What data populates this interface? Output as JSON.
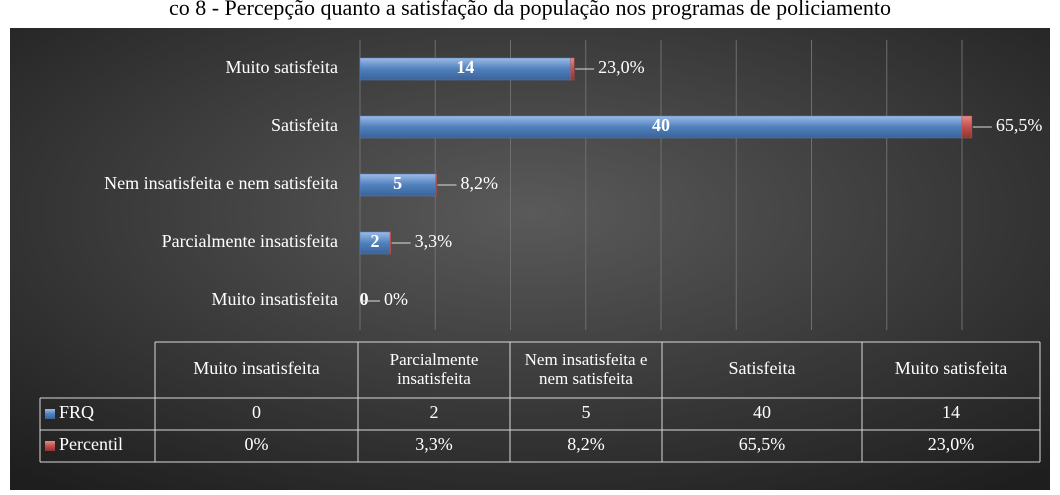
{
  "chart_data": {
    "type": "bar",
    "orientation": "horizontal",
    "title": "co 8 - Percepção quanto a satisfação da população nos programas de policiamento",
    "categories": [
      "Muito insatisfeita",
      "Parcialmente insatisfeita",
      "Nem insatisfeita e nem satisfeita",
      "Satisfeita",
      "Muito satisfeita"
    ],
    "table_headers": [
      "Muito insatisfeita",
      "Parcialmente insatisfeita",
      "Nem insatisfeita e nem satisfeita",
      "Satisfeita",
      "Muito satisfeita"
    ],
    "series": [
      {
        "name": "FRQ",
        "color": "#4f81bd",
        "values": [
          0,
          2,
          5,
          40,
          14
        ]
      },
      {
        "name": "Percentil",
        "color": "#c0504d",
        "values": [
          0,
          0.033,
          0.082,
          0.655,
          0.23
        ],
        "value_labels": [
          "0%",
          "3,3%",
          "8,2%",
          "65,5%",
          "23,0%"
        ]
      }
    ],
    "stacked": true,
    "xlim": [
      0,
      40
    ],
    "xticks": [
      0,
      5,
      10,
      15,
      20,
      25,
      30,
      35,
      40
    ],
    "grid": true
  }
}
